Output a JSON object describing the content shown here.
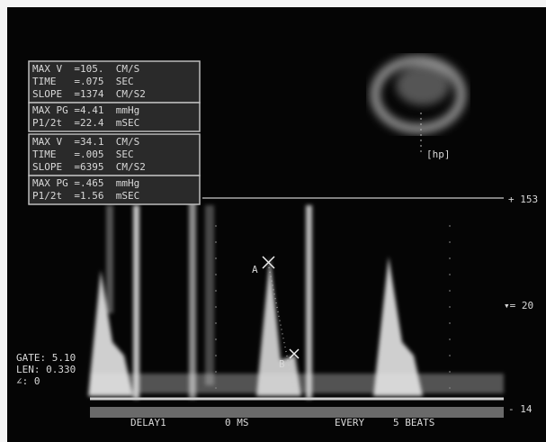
{
  "measurements": [
    {
      "lines": [
        "MAX V  =105.  CM/S",
        "TIME   =.075  SEC",
        "SLOPE  =1374  CM/S2"
      ]
    },
    {
      "lines": [
        "MAX PG =4.41  mmHg",
        "P1/2t  =22.4  mSEC"
      ]
    },
    {
      "lines": [
        "MAX V  =34.1  CM/S",
        "TIME   =.005  SEC",
        "SLOPE  =6395  CM/S2"
      ]
    },
    {
      "lines": [
        "MAX PG =.465  mmHg",
        "P1/2t  =1.56  mSEC"
      ]
    }
  ],
  "gate": [
    "GATE: 5.10",
    "LEN: 0.330",
    "∠: 0"
  ],
  "scale": [
    "+ 153",
    "▾= 20",
    "- 14"
  ],
  "markers": {
    "a": "A",
    "b": "B",
    "probe": "[hp]"
  },
  "footer": [
    "DELAY1",
    "0 MS",
    "EVERY",
    "5 BEATS"
  ]
}
